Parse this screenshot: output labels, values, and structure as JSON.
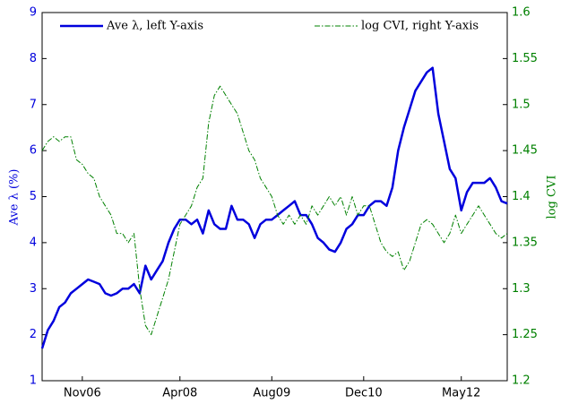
{
  "chart_data": {
    "type": "line",
    "y_label": "Ave λ (%)",
    "y2_label": "log CVI",
    "legend": "top",
    "x": [
      "2006-04",
      "2006-05",
      "2006-06",
      "2006-07",
      "2006-08",
      "2006-09",
      "2006-10",
      "2006-11",
      "2006-12",
      "2007-01",
      "2007-02",
      "2007-03",
      "2007-04",
      "2007-05",
      "2007-06",
      "2007-07",
      "2007-08",
      "2007-09",
      "2007-10",
      "2007-11",
      "2007-12",
      "2008-01",
      "2008-02",
      "2008-03",
      "2008-04",
      "2008-05",
      "2008-06",
      "2008-07",
      "2008-08",
      "2008-09",
      "2008-10",
      "2008-11",
      "2008-12",
      "2009-01",
      "2009-02",
      "2009-03",
      "2009-04",
      "2009-05",
      "2009-06",
      "2009-07",
      "2009-08",
      "2009-09",
      "2009-10",
      "2009-11",
      "2009-12",
      "2010-01",
      "2010-02",
      "2010-03",
      "2010-04",
      "2010-05",
      "2010-06",
      "2010-07",
      "2010-08",
      "2010-09",
      "2010-10",
      "2010-11",
      "2010-12",
      "2011-01",
      "2011-02",
      "2011-03",
      "2011-04",
      "2011-05",
      "2011-06",
      "2011-07",
      "2011-08",
      "2011-09",
      "2011-10",
      "2011-11",
      "2011-12",
      "2012-01",
      "2012-02",
      "2012-03",
      "2012-04",
      "2012-05",
      "2012-06",
      "2012-07",
      "2012-08",
      "2012-09",
      "2012-10",
      "2012-11",
      "2012-12",
      "2013-01"
    ],
    "xlim": [
      "2006-04",
      "2013-01"
    ],
    "xticks": [
      {
        "value": "2006-11",
        "label": "Nov06"
      },
      {
        "value": "2008-04",
        "label": "Apr08"
      },
      {
        "value": "2009-08",
        "label": "Aug09"
      },
      {
        "value": "2010-12",
        "label": "Dec10"
      },
      {
        "value": "2012-05",
        "label": "May12"
      }
    ],
    "ylim": [
      1,
      9
    ],
    "yticks": [
      1,
      2,
      3,
      4,
      5,
      6,
      7,
      8,
      9
    ],
    "y2lim": [
      1.2,
      1.6
    ],
    "y2ticks": [
      1.2,
      1.25,
      1.3,
      1.35,
      1.4,
      1.45,
      1.5,
      1.55,
      1.6
    ],
    "series": [
      {
        "name": "Ave λ, left Y-axis",
        "color": "#0000dd",
        "axis": "y",
        "style": "solid",
        "values": [
          1.7,
          2.1,
          2.3,
          2.6,
          2.7,
          2.9,
          3.0,
          3.1,
          3.2,
          3.15,
          3.1,
          2.9,
          2.85,
          2.9,
          3.0,
          3.0,
          3.1,
          2.9,
          3.5,
          3.2,
          3.4,
          3.6,
          4.0,
          4.3,
          4.5,
          4.5,
          4.4,
          4.5,
          4.2,
          4.7,
          4.4,
          4.3,
          4.3,
          4.8,
          4.5,
          4.5,
          4.4,
          4.1,
          4.4,
          4.5,
          4.5,
          4.6,
          4.7,
          4.8,
          4.9,
          4.6,
          4.6,
          4.4,
          4.1,
          4.0,
          3.85,
          3.8,
          4.0,
          4.3,
          4.4,
          4.6,
          4.6,
          4.8,
          4.9,
          4.9,
          4.8,
          5.2,
          6.0,
          6.5,
          6.9,
          7.3,
          7.5,
          7.7,
          7.8,
          6.8,
          6.2,
          5.6,
          5.4,
          4.7,
          5.1,
          5.3,
          5.3,
          5.3,
          5.4,
          5.2,
          4.9,
          4.85
        ]
      },
      {
        "name": "log CVI, right Y-axis",
        "color": "#008000",
        "axis": "y2",
        "style": "dashdot",
        "values": [
          1.45,
          1.46,
          1.465,
          1.46,
          1.465,
          1.465,
          1.44,
          1.435,
          1.425,
          1.42,
          1.4,
          1.39,
          1.38,
          1.36,
          1.36,
          1.35,
          1.36,
          1.3,
          1.26,
          1.25,
          1.27,
          1.29,
          1.31,
          1.34,
          1.37,
          1.38,
          1.39,
          1.41,
          1.42,
          1.48,
          1.51,
          1.52,
          1.51,
          1.5,
          1.49,
          1.47,
          1.45,
          1.44,
          1.42,
          1.41,
          1.4,
          1.38,
          1.37,
          1.38,
          1.37,
          1.38,
          1.37,
          1.39,
          1.38,
          1.39,
          1.4,
          1.39,
          1.4,
          1.38,
          1.4,
          1.38,
          1.39,
          1.39,
          1.37,
          1.35,
          1.34,
          1.335,
          1.34,
          1.32,
          1.33,
          1.35,
          1.37,
          1.375,
          1.37,
          1.36,
          1.35,
          1.36,
          1.38,
          1.36,
          1.37,
          1.38,
          1.39,
          1.38,
          1.37,
          1.36,
          1.355,
          1.36
        ]
      }
    ]
  }
}
